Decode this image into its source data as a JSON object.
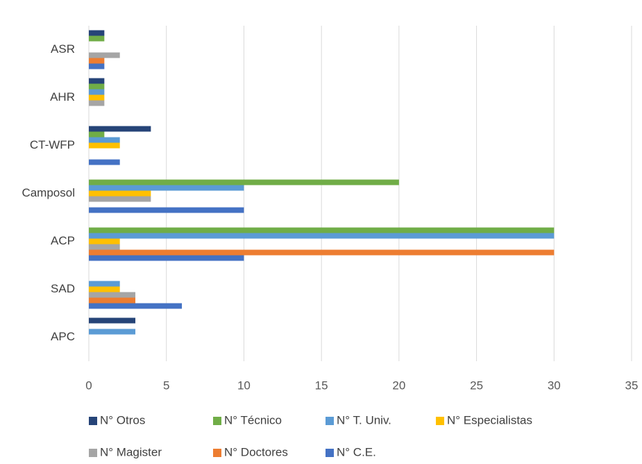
{
  "chart_data": {
    "type": "bar",
    "orientation": "horizontal",
    "categories": [
      "APC",
      "SAD",
      "ACP",
      "Camposol",
      "CT-WFP",
      "AHR",
      "ASR"
    ],
    "series": [
      {
        "name": "N° Otros",
        "color": "#264478",
        "values": [
          3,
          0,
          0,
          0,
          4,
          1,
          1
        ]
      },
      {
        "name": "N° Técnico",
        "color": "#70ad47",
        "values": [
          0,
          0,
          30,
          20,
          1,
          1,
          1
        ]
      },
      {
        "name": "N° T. Univ.",
        "color": "#5b9bd5",
        "values": [
          3,
          2,
          30,
          10,
          2,
          1,
          0
        ]
      },
      {
        "name": "N° Especialistas",
        "color": "#ffc000",
        "values": [
          0,
          2,
          2,
          4,
          2,
          1,
          0
        ]
      },
      {
        "name": "N° Magister",
        "color": "#a5a5a5",
        "values": [
          0,
          3,
          2,
          4,
          0,
          1,
          2
        ]
      },
      {
        "name": "N° Doctores",
        "color": "#ed7d31",
        "values": [
          0,
          3,
          30,
          0,
          0,
          0,
          1
        ]
      },
      {
        "name": "N° C.E.",
        "color": "#4472c4",
        "values": [
          0,
          6,
          10,
          10,
          2,
          0,
          1
        ]
      }
    ],
    "xlim": [
      0,
      35
    ],
    "xticks": [
      0,
      5,
      10,
      15,
      20,
      25,
      30,
      35
    ],
    "grid": true
  }
}
